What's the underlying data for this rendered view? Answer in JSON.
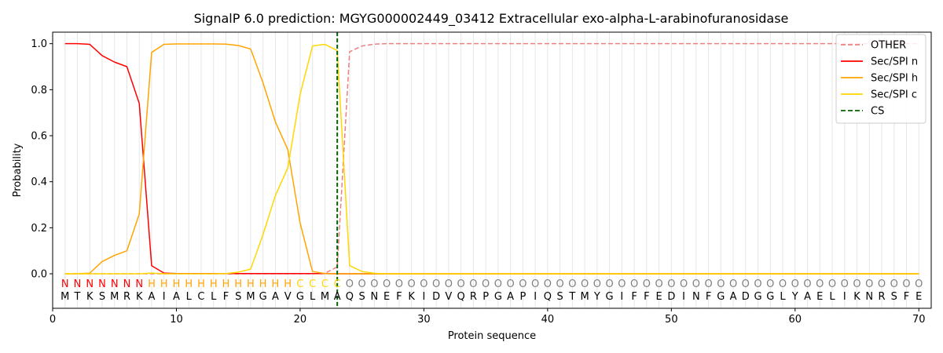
{
  "chart_data": {
    "type": "line",
    "title": "SignalP 6.0 prediction: MGYG000002449_03412 Extracellular exo-alpha-L-arabinofuranosidase",
    "xlabel": "Protein sequence",
    "ylabel": "Probability",
    "xlim": [
      0,
      71
    ],
    "ylim": [
      -0.15,
      1.05
    ],
    "xticks": [
      0,
      10,
      20,
      30,
      40,
      50,
      60,
      70
    ],
    "yticks": [
      0.0,
      0.2,
      0.4,
      0.6,
      0.8,
      1.0
    ],
    "xtick_labels": [
      "0",
      "10",
      "20",
      "30",
      "40",
      "50",
      "60",
      "70"
    ],
    "ytick_labels": [
      "0.0",
      "0.2",
      "0.4",
      "0.6",
      "0.8",
      "1.0"
    ],
    "legend_position": "top-right",
    "grid": "vertical lines at each residue",
    "sequence": [
      "M",
      "T",
      "K",
      "S",
      "M",
      "R",
      "K",
      "A",
      "I",
      "A",
      "L",
      "C",
      "L",
      "F",
      "S",
      "M",
      "G",
      "A",
      "V",
      "G",
      "L",
      "M",
      "A",
      "Q",
      "S",
      "N",
      "E",
      "F",
      "K",
      "I",
      "D",
      "V",
      "Q",
      "R",
      "P",
      "G",
      "A",
      "P",
      "I",
      "Q",
      "S",
      "T",
      "M",
      "Y",
      "G",
      "I",
      "F",
      "F",
      "E",
      "D",
      "I",
      "N",
      "F",
      "G",
      "A",
      "D",
      "G",
      "G",
      "L",
      "Y",
      "A",
      "E",
      "L",
      "I",
      "K",
      "N",
      "R",
      "S",
      "F",
      "E"
    ],
    "labels": [
      "N",
      "N",
      "N",
      "N",
      "N",
      "N",
      "N",
      "H",
      "H",
      "H",
      "H",
      "H",
      "H",
      "H",
      "H",
      "H",
      "H",
      "H",
      "H",
      "C",
      "C",
      "C",
      "C",
      "O",
      "O",
      "O",
      "O",
      "O",
      "O",
      "O",
      "O",
      "O",
      "O",
      "O",
      "O",
      "O",
      "O",
      "O",
      "O",
      "O",
      "O",
      "O",
      "O",
      "O",
      "O",
      "O",
      "O",
      "O",
      "O",
      "O",
      "O",
      "O",
      "O",
      "O",
      "O",
      "O",
      "O",
      "O",
      "O",
      "O",
      "O",
      "O",
      "O",
      "O",
      "O",
      "O",
      "O",
      "O",
      "O",
      "O"
    ],
    "label_colors": {
      "N": "#ff0000",
      "H": "#ffa500",
      "C": "#ffd700",
      "O": "#808080"
    },
    "cs_position": 23,
    "series": [
      {
        "name": "OTHER",
        "color": "#f08080",
        "dash": "dashed",
        "values": [
          0,
          0,
          0,
          0,
          0,
          0,
          0,
          0,
          0,
          0,
          0,
          0,
          0,
          0,
          0,
          0,
          0,
          0,
          0,
          0,
          0,
          0.002,
          0.03,
          0.965,
          0.99,
          0.998,
          1,
          1,
          1,
          1,
          1,
          1,
          1,
          1,
          1,
          1,
          1,
          1,
          1,
          1,
          1,
          1,
          1,
          1,
          1,
          1,
          1,
          1,
          1,
          1,
          1,
          1,
          1,
          1,
          1,
          1,
          1,
          1,
          1,
          1,
          1,
          1,
          1,
          1,
          1,
          1,
          1,
          1,
          1,
          1
        ]
      },
      {
        "name": "Sec/SPI n",
        "color": "#ff0000",
        "dash": "solid",
        "values": [
          1,
          1,
          0.997,
          0.948,
          0.92,
          0.9,
          0.74,
          0.035,
          0.003,
          0.001,
          0.001,
          0.001,
          0.001,
          0.001,
          0.001,
          0.001,
          0.001,
          0.001,
          0.001,
          0.001,
          0.001,
          0.001,
          0,
          0,
          0,
          0,
          0,
          0,
          0,
          0,
          0,
          0,
          0,
          0,
          0,
          0,
          0,
          0,
          0,
          0,
          0,
          0,
          0,
          0,
          0,
          0,
          0,
          0,
          0,
          0,
          0,
          0,
          0,
          0,
          0,
          0,
          0,
          0,
          0,
          0,
          0,
          0,
          0,
          0,
          0,
          0,
          0,
          0,
          0,
          0
        ]
      },
      {
        "name": "Sec/SPI h",
        "color": "#ffa500",
        "dash": "solid",
        "values": [
          0,
          0,
          0.003,
          0.053,
          0.08,
          0.1,
          0.26,
          0.962,
          0.997,
          0.999,
          0.999,
          0.999,
          0.999,
          0.998,
          0.992,
          0.977,
          0.83,
          0.66,
          0.54,
          0.22,
          0.01,
          0.001,
          0,
          0,
          0,
          0,
          0,
          0,
          0,
          0,
          0,
          0,
          0,
          0,
          0,
          0,
          0,
          0,
          0,
          0,
          0,
          0,
          0,
          0,
          0,
          0,
          0,
          0,
          0,
          0,
          0,
          0,
          0,
          0,
          0,
          0,
          0,
          0,
          0,
          0,
          0,
          0,
          0,
          0,
          0,
          0,
          0,
          0,
          0,
          0
        ]
      },
      {
        "name": "Sec/SPI c",
        "color": "#ffd700",
        "dash": "solid",
        "values": [
          0,
          0,
          0,
          0,
          0,
          0,
          0,
          0.003,
          0,
          0,
          0,
          0,
          0,
          0.001,
          0.007,
          0.02,
          0.17,
          0.34,
          0.46,
          0.78,
          0.99,
          0.997,
          0.97,
          0.035,
          0.01,
          0.002,
          0,
          0,
          0,
          0,
          0,
          0,
          0,
          0,
          0,
          0,
          0,
          0,
          0,
          0,
          0,
          0,
          0,
          0,
          0,
          0,
          0,
          0,
          0,
          0,
          0,
          0,
          0,
          0,
          0,
          0,
          0,
          0,
          0,
          0,
          0,
          0,
          0,
          0,
          0,
          0,
          0,
          0,
          0,
          0
        ]
      }
    ],
    "legend": [
      {
        "name": "OTHER",
        "color": "#f08080",
        "dash": "dashed"
      },
      {
        "name": "Sec/SPI n",
        "color": "#ff0000",
        "dash": "solid"
      },
      {
        "name": "Sec/SPI h",
        "color": "#ffa500",
        "dash": "solid"
      },
      {
        "name": "Sec/SPI c",
        "color": "#ffd700",
        "dash": "solid"
      },
      {
        "name": "CS",
        "color": "#006400",
        "dash": "dashed"
      }
    ]
  }
}
